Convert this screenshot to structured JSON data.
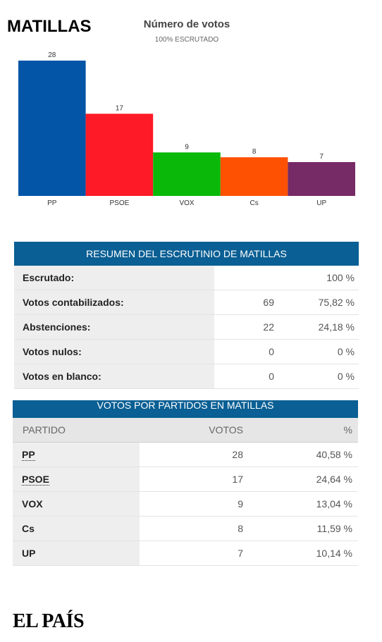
{
  "header": {
    "town": "MATILLAS"
  },
  "chart_data": {
    "type": "bar",
    "title": "Número de votos",
    "subtitle": "100% ESCRUTADO",
    "categories": [
      "PP",
      "PSOE",
      "VOX",
      "Cs",
      "UP"
    ],
    "values": [
      28,
      17,
      9,
      8,
      7
    ],
    "colors": [
      "#0355a8",
      "#fe1a26",
      "#0ab80a",
      "#fe5102",
      "#762a66"
    ],
    "ylim": [
      0,
      28
    ],
    "grid": false
  },
  "summary": {
    "title": "RESUMEN DEL ESCRUTINIO DE MATILLAS",
    "rows": [
      {
        "label": "Escrutado:",
        "value": "",
        "percent": "100 %"
      },
      {
        "label": "Votos contabilizados:",
        "value": "69",
        "percent": "75,82 %"
      },
      {
        "label": "Abstenciones:",
        "value": "22",
        "percent": "24,18 %"
      },
      {
        "label": "Votos nulos:",
        "value": "0",
        "percent": "0 %"
      },
      {
        "label": "Votos en blanco:",
        "value": "0",
        "percent": "0 %"
      }
    ]
  },
  "parties_table": {
    "title": "VOTOS POR PARTIDOS EN MATILLAS",
    "columns": [
      "PARTIDO",
      "VOTOS",
      "%"
    ],
    "rows": [
      {
        "party": "PP",
        "votes": "28",
        "percent": "40,58 %"
      },
      {
        "party": "PSOE",
        "votes": "17",
        "percent": "24,64 %"
      },
      {
        "party": "VOX",
        "votes": "9",
        "percent": "13,04 %"
      },
      {
        "party": "Cs",
        "votes": "8",
        "percent": "11,59 %"
      },
      {
        "party": "UP",
        "votes": "7",
        "percent": "10,14 %"
      }
    ]
  },
  "footer": {
    "logo": "EL PAÍS"
  }
}
